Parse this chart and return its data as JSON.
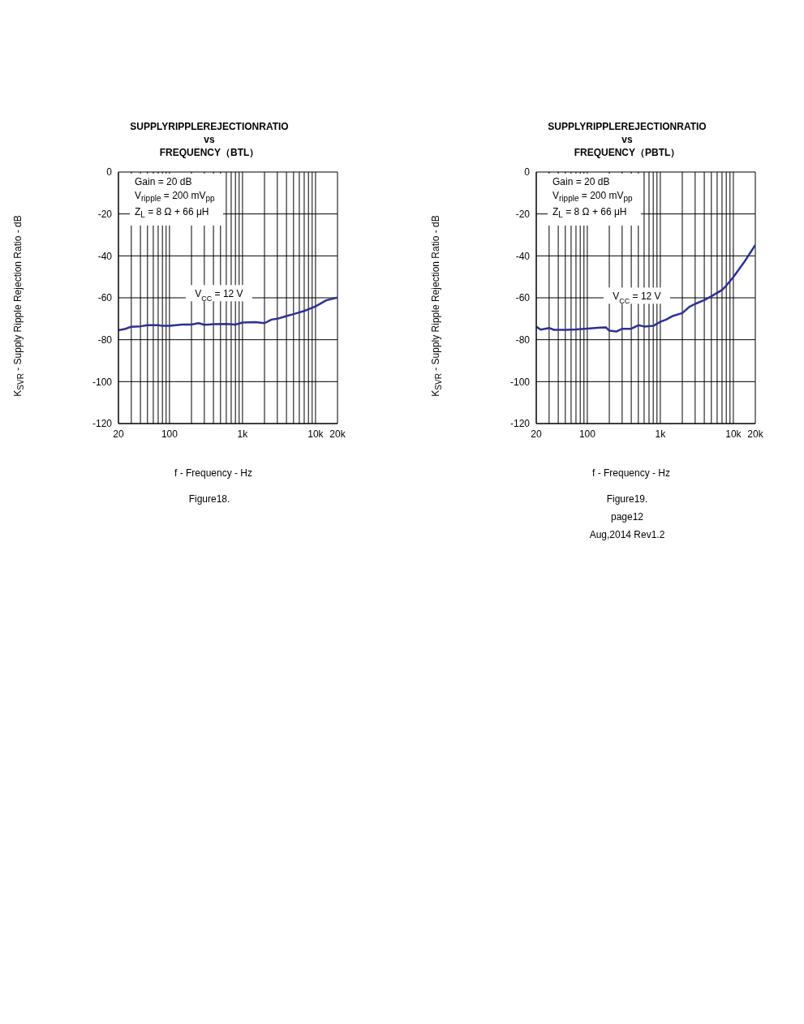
{
  "chart_data": [
    {
      "type": "line",
      "title": "SUPPLYRIPPLEREJECTIONRATIO\nvs\nFREQUENCY（BTL）",
      "xlabel": "f - Frequency - Hz",
      "ylabel": "K$_{SVR}$ - Supply Ripple Rejection Ratio - dB",
      "log": "x",
      "grid": true,
      "marker": "none",
      "line_style": "solid",
      "xlim": [
        20,
        20000
      ],
      "ylim": [
        -120,
        0
      ],
      "yticks": [
        -120,
        -100,
        -80,
        -60,
        -40,
        -20,
        0
      ],
      "xticks": [
        {
          "value": 20,
          "label": "20"
        },
        {
          "value": 30,
          "label": null
        },
        {
          "value": 40,
          "label": null
        },
        {
          "value": 50,
          "label": null
        },
        {
          "value": 60,
          "label": null
        },
        {
          "value": 70,
          "label": null
        },
        {
          "value": 80,
          "label": null
        },
        {
          "value": 90,
          "label": null
        },
        {
          "value": 100,
          "label": "100"
        },
        {
          "value": 200,
          "label": null
        },
        {
          "value": 300,
          "label": null
        },
        {
          "value": 400,
          "label": null
        },
        {
          "value": 500,
          "label": null
        },
        {
          "value": 600,
          "label": null
        },
        {
          "value": 700,
          "label": null
        },
        {
          "value": 800,
          "label": null
        },
        {
          "value": 900,
          "label": null
        },
        {
          "value": 1000,
          "label": "1k"
        },
        {
          "value": 2000,
          "label": null
        },
        {
          "value": 3000,
          "label": null
        },
        {
          "value": 4000,
          "label": null
        },
        {
          "value": 5000,
          "label": null
        },
        {
          "value": 6000,
          "label": null
        },
        {
          "value": 7000,
          "label": null
        },
        {
          "value": 8000,
          "label": null
        },
        {
          "value": 9000,
          "label": null
        },
        {
          "value": 10000,
          "label": "10k"
        },
        {
          "value": 20000,
          "label": "20k"
        }
      ],
      "series": [
        {
          "name": "V$_{CC}$ = 12 V",
          "color": "#2e3192",
          "x": [
            20,
            25,
            30,
            40,
            50,
            70,
            80,
            100,
            150,
            200,
            250,
            300,
            400,
            600,
            800,
            1000,
            1500,
            2000,
            2500,
            3000,
            4000,
            5000,
            7000,
            10000,
            14000,
            20000
          ],
          "values": [
            -75.5,
            -74.8,
            -73.8,
            -73.6,
            -73.1,
            -73.1,
            -73.4,
            -73.4,
            -72.8,
            -72.8,
            -72.1,
            -72.9,
            -72.6,
            -72.5,
            -72.8,
            -71.8,
            -71.6,
            -72.1,
            -70.4,
            -70.0,
            -68.7,
            -67.8,
            -66.3,
            -64.1,
            -61.2,
            -59.9
          ]
        }
      ],
      "annotations": [
        "Gain = 20 dB",
        "V$_{ripple}$ = 200 mV$_{pp}$",
        "Z$_{L}$ = 8 Ω + 66 μH",
        "Figure18."
      ]
    },
    {
      "type": "line",
      "title": "SUPPLYRIPPLEREJECTIONRATIO\nvs\nFREQUENCY（PBTL）",
      "xlabel": "f - Frequency - Hz",
      "ylabel": "K$_{SVR}$ - Supply Ripple Rejection Ratio - dB",
      "log": "x",
      "grid": true,
      "marker": "none",
      "line_style": "solid",
      "xlim": [
        20,
        20000
      ],
      "ylim": [
        -120,
        0
      ],
      "yticks": [
        -120,
        -100,
        -80,
        -60,
        -40,
        -20,
        0
      ],
      "xticks": [
        {
          "value": 20,
          "label": "20"
        },
        {
          "value": 30,
          "label": null
        },
        {
          "value": 40,
          "label": null
        },
        {
          "value": 50,
          "label": null
        },
        {
          "value": 60,
          "label": null
        },
        {
          "value": 70,
          "label": null
        },
        {
          "value": 80,
          "label": null
        },
        {
          "value": 90,
          "label": null
        },
        {
          "value": 100,
          "label": "100"
        },
        {
          "value": 200,
          "label": null
        },
        {
          "value": 300,
          "label": null
        },
        {
          "value": 400,
          "label": null
        },
        {
          "value": 500,
          "label": null
        },
        {
          "value": 600,
          "label": null
        },
        {
          "value": 700,
          "label": null
        },
        {
          "value": 800,
          "label": null
        },
        {
          "value": 900,
          "label": null
        },
        {
          "value": 1000,
          "label": "1k"
        },
        {
          "value": 2000,
          "label": null
        },
        {
          "value": 3000,
          "label": null
        },
        {
          "value": 4000,
          "label": null
        },
        {
          "value": 5000,
          "label": null
        },
        {
          "value": 6000,
          "label": null
        },
        {
          "value": 7000,
          "label": null
        },
        {
          "value": 8000,
          "label": null
        },
        {
          "value": 9000,
          "label": null
        },
        {
          "value": 10000,
          "label": "10k"
        },
        {
          "value": 20000,
          "label": "20k"
        }
      ],
      "series": [
        {
          "name": "V$_{CC}$ = 12 V",
          "color": "#2e3192",
          "x": [
            20,
            23,
            30,
            35,
            50,
            70,
            100,
            150,
            180,
            200,
            250,
            300,
            400,
            500,
            600,
            800,
            1000,
            1200,
            1500,
            2000,
            2500,
            3000,
            4000,
            5000,
            7000,
            8000,
            10000,
            14000,
            20000
          ],
          "values": [
            -73.8,
            -75.2,
            -74.4,
            -75.3,
            -75.3,
            -75.1,
            -74.7,
            -74.2,
            -74.1,
            -75.7,
            -76.1,
            -74.8,
            -74.8,
            -73.1,
            -73.7,
            -73.4,
            -71.5,
            -70.4,
            -68.6,
            -67.3,
            -64.3,
            -62.9,
            -61.1,
            -59.3,
            -56.3,
            -54.2,
            -50.1,
            -43.1,
            -34.8
          ]
        }
      ],
      "annotations": [
        "Gain = 20 dB",
        "V$_{ripple}$ = 200 mV$_{pp}$",
        "Z$_{L}$ = 8 Ω + 66 μH",
        "Figure19.",
        "page12",
        "Aug,2014  Rev1.2"
      ]
    }
  ]
}
